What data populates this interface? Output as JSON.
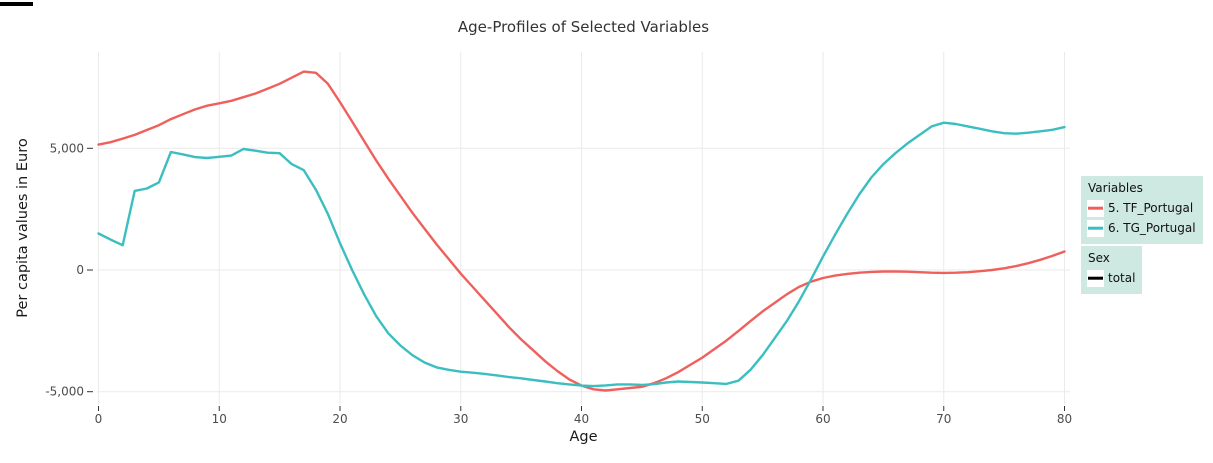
{
  "chart_data": {
    "type": "line",
    "title": "Age-Profiles of Selected Variables",
    "xlabel": "Age",
    "ylabel": "Per capita values in Euro",
    "xlim": [
      0,
      80
    ],
    "ylim": [
      -5500,
      8950
    ],
    "x_ticks": [
      0,
      10,
      20,
      30,
      40,
      50,
      60,
      70,
      80
    ],
    "x_tick_labels": [
      "0",
      "10",
      "20",
      "30",
      "40",
      "50",
      "60",
      "70",
      "80"
    ],
    "y_ticks": [
      -5000,
      0,
      5000
    ],
    "y_tick_labels": [
      "-5,000",
      "0",
      "5,000"
    ],
    "grid": true,
    "legend_position": "right",
    "colors": {
      "grid": "#EAEAEA",
      "tick_mark": "#333333",
      "tick_text": "#4D4D4D",
      "axis_title": "#1A1A1A",
      "title": "#333333"
    },
    "series": [
      {
        "name": "5. TF_Portugal",
        "color": "#EF605D",
        "points": [
          [
            0,
            5150
          ],
          [
            1,
            5250
          ],
          [
            2,
            5400
          ],
          [
            3,
            5550
          ],
          [
            4,
            5750
          ],
          [
            5,
            5950
          ],
          [
            6,
            6200
          ],
          [
            7,
            6400
          ],
          [
            8,
            6600
          ],
          [
            9,
            6750
          ],
          [
            10,
            6850
          ],
          [
            11,
            6950
          ],
          [
            12,
            7100
          ],
          [
            13,
            7250
          ],
          [
            14,
            7450
          ],
          [
            15,
            7650
          ],
          [
            16,
            7900
          ],
          [
            17,
            8150
          ],
          [
            18,
            8100
          ],
          [
            19,
            7650
          ],
          [
            20,
            6900
          ],
          [
            21,
            6100
          ],
          [
            22,
            5300
          ],
          [
            23,
            4500
          ],
          [
            24,
            3750
          ],
          [
            25,
            3050
          ],
          [
            26,
            2350
          ],
          [
            27,
            1700
          ],
          [
            28,
            1050
          ],
          [
            29,
            450
          ],
          [
            30,
            -150
          ],
          [
            31,
            -700
          ],
          [
            32,
            -1250
          ],
          [
            33,
            -1800
          ],
          [
            34,
            -2350
          ],
          [
            35,
            -2850
          ],
          [
            36,
            -3300
          ],
          [
            37,
            -3750
          ],
          [
            38,
            -4150
          ],
          [
            39,
            -4500
          ],
          [
            40,
            -4750
          ],
          [
            41,
            -4900
          ],
          [
            42,
            -4950
          ],
          [
            43,
            -4900
          ],
          [
            44,
            -4850
          ],
          [
            45,
            -4800
          ],
          [
            46,
            -4650
          ],
          [
            47,
            -4450
          ],
          [
            48,
            -4200
          ],
          [
            49,
            -3900
          ],
          [
            50,
            -3600
          ],
          [
            51,
            -3250
          ],
          [
            52,
            -2900
          ],
          [
            53,
            -2500
          ],
          [
            54,
            -2100
          ],
          [
            55,
            -1700
          ],
          [
            56,
            -1350
          ],
          [
            57,
            -1000
          ],
          [
            58,
            -700
          ],
          [
            59,
            -480
          ],
          [
            60,
            -330
          ],
          [
            61,
            -230
          ],
          [
            62,
            -160
          ],
          [
            63,
            -110
          ],
          [
            64,
            -80
          ],
          [
            65,
            -60
          ],
          [
            66,
            -60
          ],
          [
            67,
            -70
          ],
          [
            68,
            -90
          ],
          [
            69,
            -110
          ],
          [
            70,
            -120
          ],
          [
            71,
            -110
          ],
          [
            72,
            -90
          ],
          [
            73,
            -50
          ],
          [
            74,
            0
          ],
          [
            75,
            70
          ],
          [
            76,
            160
          ],
          [
            77,
            280
          ],
          [
            78,
            420
          ],
          [
            79,
            580
          ],
          [
            80,
            760
          ]
        ]
      },
      {
        "name": "6. TG_Portugal",
        "color": "#3CBEC0",
        "points": [
          [
            0,
            1500
          ],
          [
            1,
            1250
          ],
          [
            2,
            1020
          ],
          [
            3,
            3250
          ],
          [
            4,
            3350
          ],
          [
            5,
            3600
          ],
          [
            6,
            4850
          ],
          [
            7,
            4750
          ],
          [
            8,
            4640
          ],
          [
            9,
            4600
          ],
          [
            10,
            4650
          ],
          [
            11,
            4700
          ],
          [
            12,
            4970
          ],
          [
            13,
            4900
          ],
          [
            14,
            4820
          ],
          [
            15,
            4800
          ],
          [
            16,
            4350
          ],
          [
            17,
            4100
          ],
          [
            18,
            3300
          ],
          [
            19,
            2300
          ],
          [
            20,
            1100
          ],
          [
            21,
            0
          ],
          [
            22,
            -1000
          ],
          [
            23,
            -1900
          ],
          [
            24,
            -2600
          ],
          [
            25,
            -3100
          ],
          [
            26,
            -3500
          ],
          [
            27,
            -3800
          ],
          [
            28,
            -4000
          ],
          [
            29,
            -4100
          ],
          [
            30,
            -4180
          ],
          [
            31,
            -4220
          ],
          [
            32,
            -4270
          ],
          [
            33,
            -4330
          ],
          [
            34,
            -4400
          ],
          [
            35,
            -4450
          ],
          [
            36,
            -4520
          ],
          [
            37,
            -4580
          ],
          [
            38,
            -4650
          ],
          [
            39,
            -4700
          ],
          [
            40,
            -4750
          ],
          [
            41,
            -4770
          ],
          [
            42,
            -4740
          ],
          [
            43,
            -4700
          ],
          [
            44,
            -4700
          ],
          [
            45,
            -4720
          ],
          [
            46,
            -4690
          ],
          [
            47,
            -4620
          ],
          [
            48,
            -4580
          ],
          [
            49,
            -4600
          ],
          [
            50,
            -4620
          ],
          [
            51,
            -4650
          ],
          [
            52,
            -4680
          ],
          [
            53,
            -4550
          ],
          [
            54,
            -4100
          ],
          [
            55,
            -3500
          ],
          [
            56,
            -2800
          ],
          [
            57,
            -2100
          ],
          [
            58,
            -1300
          ],
          [
            59,
            -400
          ],
          [
            60,
            550
          ],
          [
            61,
            1450
          ],
          [
            62,
            2300
          ],
          [
            63,
            3100
          ],
          [
            64,
            3800
          ],
          [
            65,
            4350
          ],
          [
            66,
            4800
          ],
          [
            67,
            5200
          ],
          [
            68,
            5550
          ],
          [
            69,
            5900
          ],
          [
            70,
            6050
          ],
          [
            71,
            6000
          ],
          [
            72,
            5900
          ],
          [
            73,
            5800
          ],
          [
            74,
            5700
          ],
          [
            75,
            5620
          ],
          [
            76,
            5600
          ],
          [
            77,
            5640
          ],
          [
            78,
            5700
          ],
          [
            79,
            5760
          ],
          [
            80,
            5870
          ]
        ]
      }
    ]
  },
  "legend": {
    "background": "#CEE8E2",
    "key_background": "#FFFFFF",
    "variables": {
      "title": "Variables",
      "items": [
        {
          "label": "5. TF_Portugal",
          "color": "#EF605D"
        },
        {
          "label": "6. TG_Portugal",
          "color": "#3CBEC0"
        }
      ]
    },
    "sex": {
      "title": "Sex",
      "items": [
        {
          "label": "total",
          "color": "#000000"
        }
      ]
    }
  }
}
